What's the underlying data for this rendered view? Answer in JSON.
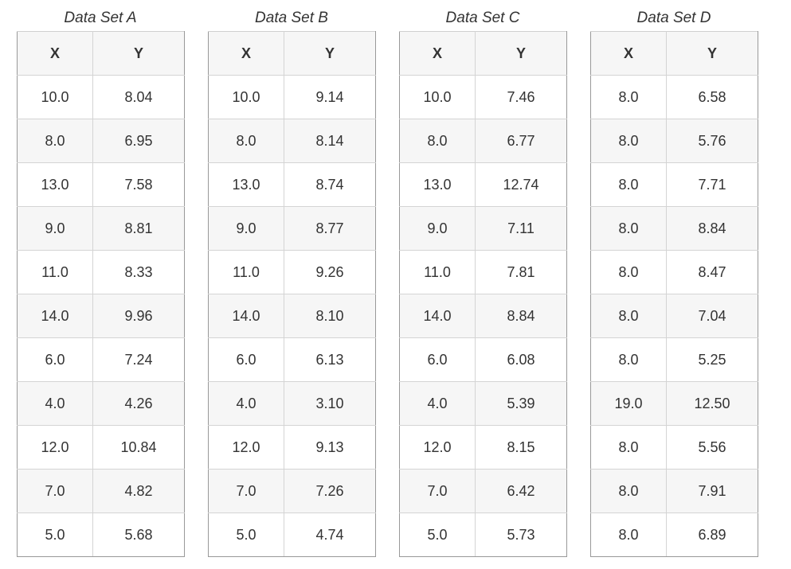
{
  "chart_data": [
    {
      "type": "table",
      "title": "Data Set A",
      "columns": [
        "X",
        "Y"
      ],
      "x": [
        10.0,
        8.0,
        13.0,
        9.0,
        11.0,
        14.0,
        6.0,
        4.0,
        12.0,
        7.0,
        5.0
      ],
      "y": [
        8.04,
        6.95,
        7.58,
        8.81,
        8.33,
        9.96,
        7.24,
        4.26,
        10.84,
        4.82,
        5.68
      ],
      "rows": [
        [
          "10.0",
          "8.04"
        ],
        [
          "8.0",
          "6.95"
        ],
        [
          "13.0",
          "7.58"
        ],
        [
          "9.0",
          "8.81"
        ],
        [
          "11.0",
          "8.33"
        ],
        [
          "14.0",
          "9.96"
        ],
        [
          "6.0",
          "7.24"
        ],
        [
          "4.0",
          "4.26"
        ],
        [
          "12.0",
          "10.84"
        ],
        [
          "7.0",
          "4.82"
        ],
        [
          "5.0",
          "5.68"
        ]
      ]
    },
    {
      "type": "table",
      "title": "Data Set B",
      "columns": [
        "X",
        "Y"
      ],
      "x": [
        10.0,
        8.0,
        13.0,
        9.0,
        11.0,
        14.0,
        6.0,
        4.0,
        12.0,
        7.0,
        5.0
      ],
      "y": [
        9.14,
        8.14,
        8.74,
        8.77,
        9.26,
        8.1,
        6.13,
        3.1,
        9.13,
        7.26,
        4.74
      ],
      "rows": [
        [
          "10.0",
          "9.14"
        ],
        [
          "8.0",
          "8.14"
        ],
        [
          "13.0",
          "8.74"
        ],
        [
          "9.0",
          "8.77"
        ],
        [
          "11.0",
          "9.26"
        ],
        [
          "14.0",
          "8.10"
        ],
        [
          "6.0",
          "6.13"
        ],
        [
          "4.0",
          "3.10"
        ],
        [
          "12.0",
          "9.13"
        ],
        [
          "7.0",
          "7.26"
        ],
        [
          "5.0",
          "4.74"
        ]
      ]
    },
    {
      "type": "table",
      "title": "Data Set C",
      "columns": [
        "X",
        "Y"
      ],
      "x": [
        10.0,
        8.0,
        13.0,
        9.0,
        11.0,
        14.0,
        6.0,
        4.0,
        12.0,
        7.0,
        5.0
      ],
      "y": [
        7.46,
        6.77,
        12.74,
        7.11,
        7.81,
        8.84,
        6.08,
        5.39,
        8.15,
        6.42,
        5.73
      ],
      "rows": [
        [
          "10.0",
          "7.46"
        ],
        [
          "8.0",
          "6.77"
        ],
        [
          "13.0",
          "12.74"
        ],
        [
          "9.0",
          "7.11"
        ],
        [
          "11.0",
          "7.81"
        ],
        [
          "14.0",
          "8.84"
        ],
        [
          "6.0",
          "6.08"
        ],
        [
          "4.0",
          "5.39"
        ],
        [
          "12.0",
          "8.15"
        ],
        [
          "7.0",
          "6.42"
        ],
        [
          "5.0",
          "5.73"
        ]
      ]
    },
    {
      "type": "table",
      "title": "Data Set D",
      "columns": [
        "X",
        "Y"
      ],
      "x": [
        8.0,
        8.0,
        8.0,
        8.0,
        8.0,
        8.0,
        8.0,
        19.0,
        8.0,
        8.0,
        8.0
      ],
      "y": [
        6.58,
        5.76,
        7.71,
        8.84,
        8.47,
        7.04,
        5.25,
        12.5,
        5.56,
        7.91,
        6.89
      ],
      "rows": [
        [
          "8.0",
          "6.58"
        ],
        [
          "8.0",
          "5.76"
        ],
        [
          "8.0",
          "7.71"
        ],
        [
          "8.0",
          "8.84"
        ],
        [
          "8.0",
          "8.47"
        ],
        [
          "8.0",
          "7.04"
        ],
        [
          "8.0",
          "5.25"
        ],
        [
          "19.0",
          "12.50"
        ],
        [
          "8.0",
          "5.56"
        ],
        [
          "8.0",
          "7.91"
        ],
        [
          "8.0",
          "6.89"
        ]
      ]
    }
  ]
}
